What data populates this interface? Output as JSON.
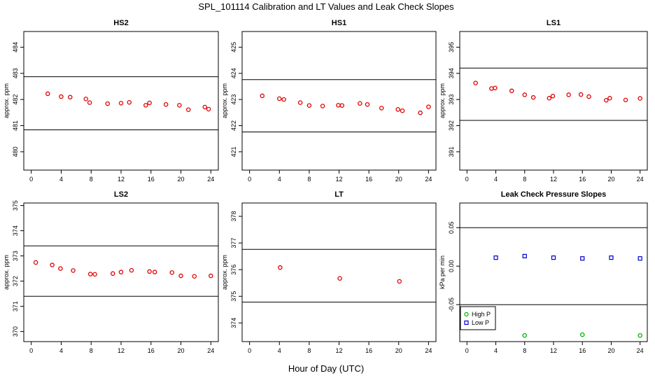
{
  "title": "SPL_101114  Calibration and LT Values and Leak Check Slopes",
  "xlabel": "Hour of Day (UTC)",
  "chart_data": [
    {
      "type": "scatter",
      "title": "HS2",
      "ylabel": "approx. ppm",
      "xlim": [
        -1,
        25
      ],
      "xticks": [
        0,
        4,
        8,
        12,
        16,
        20,
        24
      ],
      "ylim": [
        479.3,
        484.6
      ],
      "yticks": [
        480,
        481,
        482,
        483,
        484
      ],
      "hlines": [
        482.87,
        480.84
      ],
      "colors": {
        "points": "#e00000"
      },
      "series": [
        {
          "x": [
            2.2,
            4.0,
            5.2,
            7.3,
            7.8,
            10.2,
            12.0,
            13.1,
            15.3,
            15.8,
            18.0,
            19.8,
            21.0,
            23.2,
            23.7
          ],
          "y": [
            482.22,
            482.11,
            482.09,
            482.02,
            481.88,
            481.84,
            481.86,
            481.89,
            481.78,
            481.87,
            481.81,
            481.78,
            481.61,
            481.71,
            481.63
          ]
        }
      ]
    },
    {
      "type": "scatter",
      "title": "HS1",
      "ylabel": "approx. ppm",
      "xlim": [
        -1,
        25
      ],
      "xticks": [
        0,
        4,
        8,
        12,
        16,
        20,
        24
      ],
      "ylim": [
        420.3,
        425.6
      ],
      "yticks": [
        421,
        422,
        423,
        424,
        425
      ],
      "hlines": [
        423.76,
        421.76
      ],
      "colors": {
        "points": "#e00000"
      },
      "series": [
        {
          "x": [
            1.7,
            4.0,
            4.6,
            6.8,
            8.0,
            9.8,
            11.9,
            12.4,
            14.8,
            15.8,
            17.7,
            19.9,
            20.5,
            22.9,
            24.0
          ],
          "y": [
            423.14,
            423.03,
            423.0,
            422.88,
            422.77,
            422.75,
            422.78,
            422.77,
            422.85,
            422.81,
            422.67,
            422.62,
            422.57,
            422.49,
            422.72
          ]
        }
      ]
    },
    {
      "type": "scatter",
      "title": "LS1",
      "ylabel": "approx. ppm",
      "xlim": [
        -1,
        25
      ],
      "xticks": [
        0,
        4,
        8,
        12,
        16,
        20,
        24
      ],
      "ylim": [
        390.3,
        395.6
      ],
      "yticks": [
        391,
        392,
        393,
        394,
        395
      ],
      "hlines": [
        394.2,
        392.2
      ],
      "colors": {
        "points": "#e00000"
      },
      "series": [
        {
          "x": [
            1.2,
            3.4,
            3.9,
            6.2,
            8.0,
            9.2,
            11.4,
            11.9,
            14.1,
            15.8,
            16.9,
            19.3,
            19.8,
            22.0,
            24.0
          ],
          "y": [
            393.63,
            393.42,
            393.44,
            393.33,
            393.18,
            393.08,
            393.05,
            393.13,
            393.18,
            393.19,
            393.11,
            392.97,
            393.05,
            392.98,
            393.04
          ]
        }
      ]
    },
    {
      "type": "scatter",
      "title": "LS2",
      "ylabel": "approx. ppm",
      "xlim": [
        -1,
        25
      ],
      "xticks": [
        0,
        4,
        8,
        12,
        16,
        20,
        24
      ],
      "ylim": [
        369.6,
        375.1
      ],
      "yticks": [
        370,
        371,
        372,
        373,
        374,
        375
      ],
      "hlines": [
        373.4,
        371.4
      ],
      "colors": {
        "points": "#e00000"
      },
      "series": [
        {
          "x": [
            0.6,
            2.8,
            3.9,
            5.6,
            7.9,
            8.5,
            10.9,
            12.0,
            13.4,
            15.8,
            16.5,
            18.8,
            20.0,
            21.8,
            24.0
          ],
          "y": [
            372.74,
            372.64,
            372.5,
            372.42,
            372.28,
            372.27,
            372.3,
            372.36,
            372.43,
            372.38,
            372.36,
            372.34,
            372.21,
            372.19,
            372.21
          ]
        }
      ]
    },
    {
      "type": "scatter",
      "title": "LT",
      "ylabel": "approx. ppm",
      "xlim": [
        -1,
        25
      ],
      "xticks": [
        0,
        4,
        8,
        12,
        16,
        20,
        24
      ],
      "ylim": [
        373.3,
        378.5
      ],
      "yticks": [
        374,
        375,
        376,
        377,
        378
      ],
      "hlines": [
        376.76,
        374.78
      ],
      "colors": {
        "points": "#e00000"
      },
      "series": [
        {
          "x": [
            4.1,
            12.1,
            20.1
          ],
          "y": [
            376.08,
            375.67,
            375.56
          ]
        }
      ]
    },
    {
      "type": "scatter",
      "title": "Leak Check Pressure Slopes",
      "ylabel": "kPa per min",
      "xlim": [
        -1,
        25
      ],
      "xticks": [
        0,
        4,
        8,
        12,
        16,
        20,
        24
      ],
      "ylim": [
        -0.098,
        0.082
      ],
      "yticks": [
        -0.05,
        0.0,
        0.05
      ],
      "ytick_labels": [
        "-0.05",
        "0.00",
        "0.05"
      ],
      "hlines": [
        0.05,
        -0.05
      ],
      "legend": {
        "placement": "bottom-left"
      },
      "colors": {
        "High P": "#00b000",
        "Low P": "#0000cc"
      },
      "series": [
        {
          "name": "High P",
          "x": [
            8,
            16,
            24
          ],
          "y": [
            -0.09,
            -0.089,
            -0.09
          ]
        },
        {
          "name": "Low P",
          "x": [
            4,
            8,
            12,
            16,
            20,
            24
          ],
          "y": [
            0.011,
            0.013,
            0.011,
            0.01,
            0.011,
            0.01
          ]
        }
      ]
    }
  ]
}
